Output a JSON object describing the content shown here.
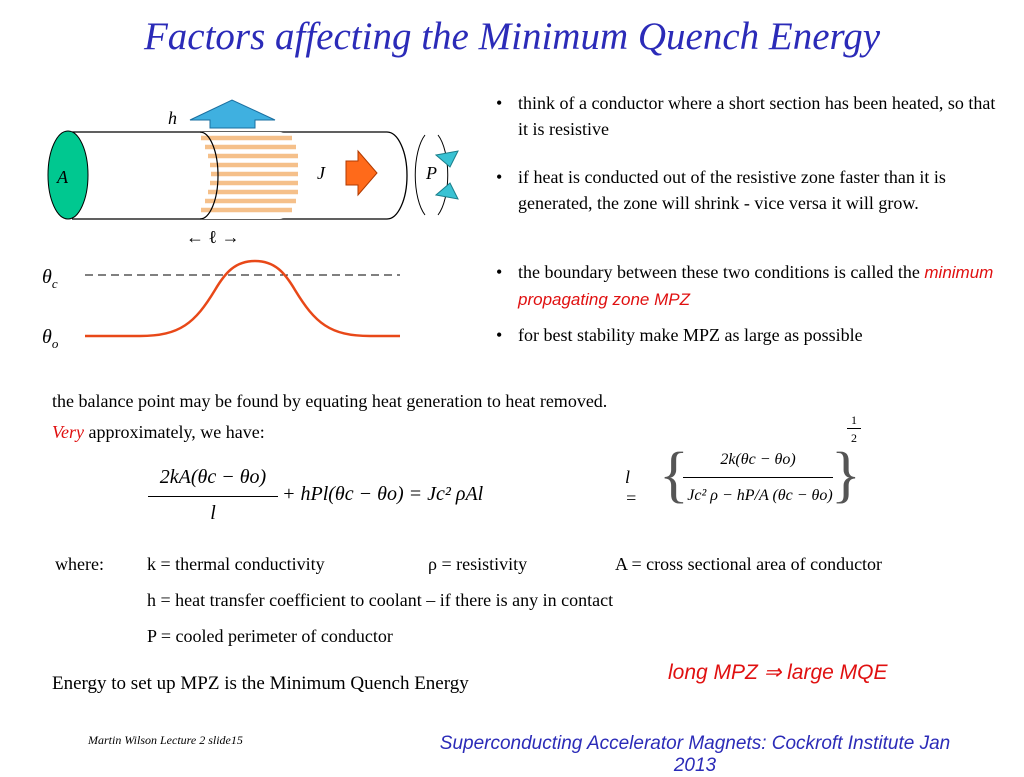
{
  "title": "Factors affecting the Minimum Quench Energy",
  "diagram": {
    "label_h": "h",
    "label_A": "A",
    "label_J": "J",
    "label_P": "P",
    "label_l": "← ℓ →",
    "theta_c": "θc",
    "theta_o": "θo",
    "colors": {
      "ellipse": "#00c890",
      "arrow_up": "#3fb0e0",
      "arrow_right": "#ff6a1a",
      "curve": "#e84818",
      "stripes": "#f5c89a",
      "p_arrows": "#39c2d3"
    }
  },
  "bullets": [
    {
      "text": "think of a conductor where a short section has been heated, so that it is resistive"
    },
    {
      "text": " if heat is conducted out of the resistive zone faster than it is generated, the zone will shrink - vice versa it will grow."
    },
    {
      "text": "the boundary between these two conditions is called the ",
      "highlight": "minimum propagating zone  MPZ"
    },
    {
      "text": "for best stability make MPZ as large as possible"
    }
  ],
  "balance_line": "the balance point may be found by equating  heat generation to heat removed.",
  "approx_very": "Very",
  "approx_rest": " approximately, we have:",
  "eq1": {
    "numerator": "2kA(θc − θo)",
    "denominator": "l",
    "rest": "+ hPl(θc − θo) = Jc² ρAl"
  },
  "eq2": {
    "lhs": "l =",
    "num": "2k(θc − θo)",
    "den": "Jc² ρ − hP/A (θc − θo)",
    "exp_num": "1",
    "exp_den": "2"
  },
  "where": {
    "label": "where:",
    "k": "k = thermal conductivity",
    "rho": "ρ = resistivity",
    "A": "A = cross sectional area of conductor",
    "h": "h = heat transfer coefficient to coolant – if there is any in contact",
    "P": "P = cooled perimeter of conductor"
  },
  "long_mpz": "long MPZ ⇒ large MQE",
  "energy_line": "Energy to set up MPZ is the Minimum Quench Energy",
  "footer_left": "Martin Wilson Lecture 2 slide15",
  "footer_right_1": "Superconducting Accelerator Magnets:  Cockroft Institute Jan",
  "footer_right_2": "2013"
}
